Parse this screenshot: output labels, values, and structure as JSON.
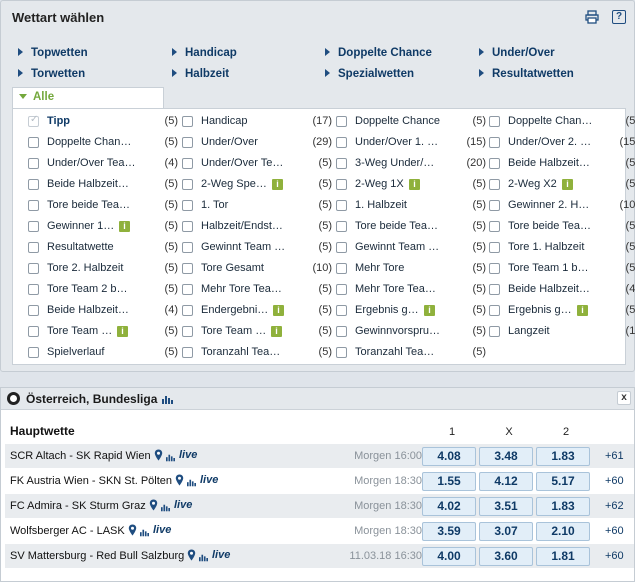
{
  "panel": {
    "title": "Wettart wählen",
    "help_label": "?"
  },
  "categories": [
    {
      "label": "Topwetten"
    },
    {
      "label": "Handicap"
    },
    {
      "label": "Doppelte Chance"
    },
    {
      "label": "Under/Over"
    },
    {
      "label": "Torwetten"
    },
    {
      "label": "Halbzeit"
    },
    {
      "label": "Spezialwetten"
    },
    {
      "label": "Resultatwetten"
    }
  ],
  "alle_tab": {
    "label": "Alle"
  },
  "bet_columns": [
    [
      {
        "label": "Tipp",
        "count": "(5)",
        "checked": true,
        "bold": true
      },
      {
        "label": "Doppelte Chan…",
        "count": "(5)"
      },
      {
        "label": "Under/Over Tea…",
        "count": "(4)"
      },
      {
        "label": "Beide Halbzeit…",
        "count": "(5)"
      },
      {
        "label": "Tore beide Tea…",
        "count": "(5)"
      },
      {
        "label": "Gewinner 1…",
        "count": "(5)",
        "info": true
      },
      {
        "label": "Resultatwette",
        "count": "(5)"
      },
      {
        "label": "Tore 2. Halbzeit",
        "count": "(5)"
      },
      {
        "label": "Tore Team 2 b…",
        "count": "(5)"
      },
      {
        "label": "Beide Halbzeit…",
        "count": "(4)"
      },
      {
        "label": "Tore Team …",
        "count": "(5)",
        "info": true
      },
      {
        "label": "Spielverlauf",
        "count": "(5)"
      }
    ],
    [
      {
        "label": "Handicap",
        "count": "(17)"
      },
      {
        "label": "Under/Over",
        "count": "(29)"
      },
      {
        "label": "Under/Over Te…",
        "count": "(5)"
      },
      {
        "label": "2-Weg Spe…",
        "count": "(5)",
        "info": true
      },
      {
        "label": "1. Tor",
        "count": "(5)"
      },
      {
        "label": "Halbzeit/Endst…",
        "count": "(5)"
      },
      {
        "label": "Gewinnt Team …",
        "count": "(5)"
      },
      {
        "label": "Tore Gesamt",
        "count": "(10)"
      },
      {
        "label": "Mehr Tore Tea…",
        "count": "(5)"
      },
      {
        "label": "Endergebni…",
        "count": "(5)",
        "info": true
      },
      {
        "label": "Tore Team …",
        "count": "(5)",
        "info": true
      },
      {
        "label": "Toranzahl Tea…",
        "count": "(5)"
      }
    ],
    [
      {
        "label": "Doppelte Chance",
        "count": "(5)"
      },
      {
        "label": "Under/Over 1. …",
        "count": "(15)"
      },
      {
        "label": "3-Weg Under/…",
        "count": "(20)"
      },
      {
        "label": "2-Weg 1X",
        "count": "(5)",
        "info": true
      },
      {
        "label": "1. Halbzeit",
        "count": "(5)"
      },
      {
        "label": "Tore beide Tea…",
        "count": "(5)"
      },
      {
        "label": "Gewinnt Team …",
        "count": "(5)"
      },
      {
        "label": "Mehr Tore",
        "count": "(5)"
      },
      {
        "label": "Mehr Tore Tea…",
        "count": "(5)"
      },
      {
        "label": "Ergebnis g…",
        "count": "(5)",
        "info": true
      },
      {
        "label": "Gewinnvorspru…",
        "count": "(5)"
      },
      {
        "label": "Toranzahl Tea…",
        "count": "(5)"
      }
    ],
    [
      {
        "label": "Doppelte Chan…",
        "count": "(5)"
      },
      {
        "label": "Under/Over 2. …",
        "count": "(15)"
      },
      {
        "label": "Beide Halbzeit…",
        "count": "(5)"
      },
      {
        "label": "2-Weg X2",
        "count": "(5)",
        "info": true
      },
      {
        "label": "Gewinner 2. H…",
        "count": "(10)"
      },
      {
        "label": "Tore beide Tea…",
        "count": "(5)"
      },
      {
        "label": "Tore 1. Halbzeit",
        "count": "(5)"
      },
      {
        "label": "Tore Team 1 b…",
        "count": "(5)"
      },
      {
        "label": "Beide Halbzeit…",
        "count": "(4)"
      },
      {
        "label": "Ergebnis g…",
        "count": "(5)",
        "info": true
      },
      {
        "label": "Langzeit",
        "count": "(1)"
      }
    ]
  ],
  "info_badge_label": "i",
  "league": {
    "title": "Österreich, Bundesliga",
    "close_label": "x"
  },
  "market": {
    "title": "Hauptwette",
    "outcomes": [
      "1",
      "X",
      "2"
    ]
  },
  "matches": [
    {
      "name": "SCR Altach - SK Rapid Wien",
      "live": "live",
      "time": "Morgen 16:00",
      "odds": [
        "4.08",
        "3.48",
        "1.83"
      ],
      "more": "+61"
    },
    {
      "name": "FK Austria Wien - SKN St. Pölten",
      "live": "live",
      "time": "Morgen 18:30",
      "odds": [
        "1.55",
        "4.12",
        "5.17"
      ],
      "more": "+60"
    },
    {
      "name": "FC Admira - SK Sturm Graz",
      "live": "live",
      "time": "Morgen 18:30",
      "odds": [
        "4.02",
        "3.51",
        "1.83"
      ],
      "more": "+62"
    },
    {
      "name": "Wolfsberger AC - LASK",
      "live": "live",
      "time": "Morgen 18:30",
      "odds": [
        "3.59",
        "3.07",
        "2.10"
      ],
      "more": "+60"
    },
    {
      "name": "SV Mattersburg - Red Bull Salzburg",
      "live": "live",
      "time": "11.03.18 16:30",
      "odds": [
        "4.00",
        "3.60",
        "1.81"
      ],
      "more": "+60"
    }
  ],
  "colors": {
    "accent_blue": "#0f3a66",
    "green": "#74a83c",
    "odd_bg": "#e2eef8"
  }
}
